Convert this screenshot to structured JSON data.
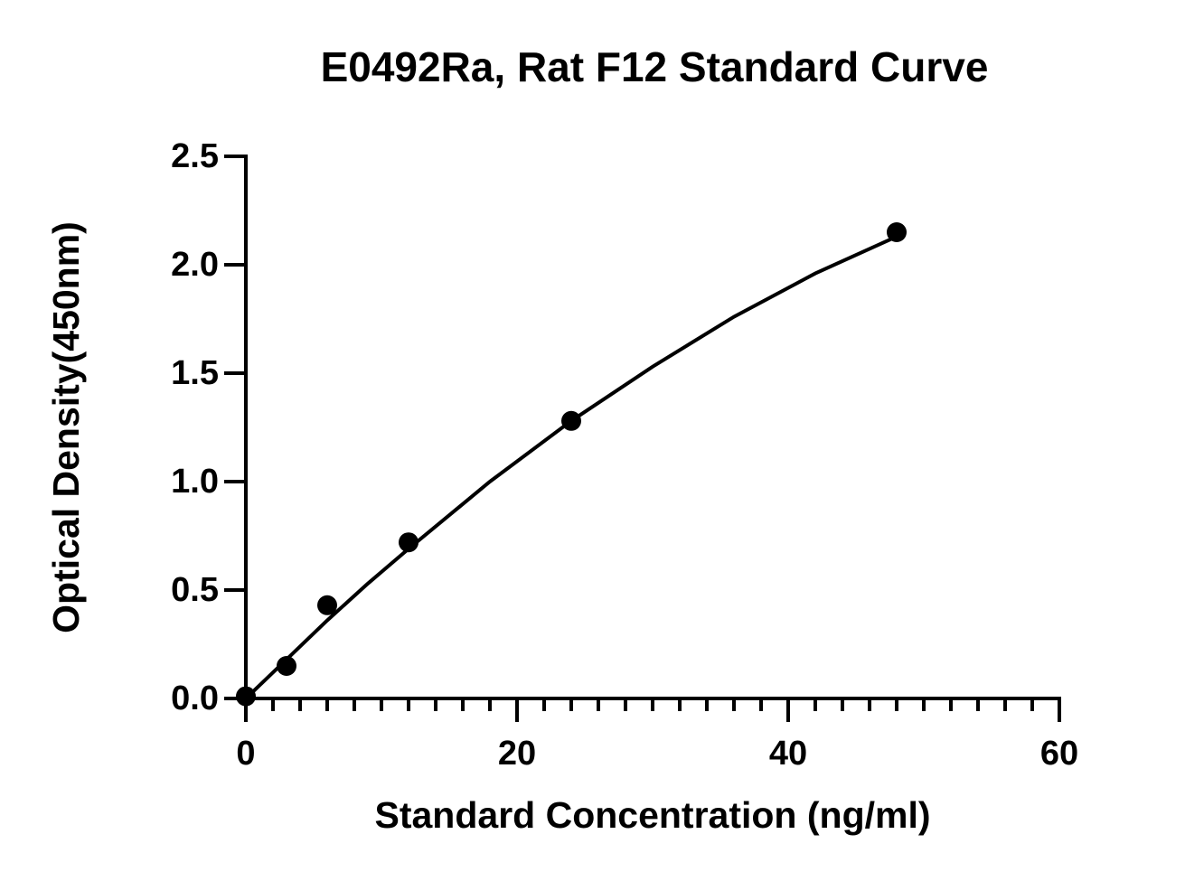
{
  "chart_data": {
    "type": "scatter",
    "title": "E0492Ra, Rat F12 Standard Curve",
    "x_label": "Standard Concentration (ng/ml)",
    "y_label": "Optical Density(450nm)",
    "x": [
      0,
      3,
      6,
      12,
      24,
      48
    ],
    "values": [
      0.01,
      0.15,
      0.43,
      0.72,
      1.28,
      2.15
    ],
    "color": "#000000",
    "fit": {
      "x": [
        0,
        3,
        6,
        9,
        12,
        18,
        24,
        30,
        36,
        42,
        48
      ],
      "values": [
        0,
        0.18,
        0.36,
        0.53,
        0.69,
        1.0,
        1.28,
        1.53,
        1.76,
        1.96,
        2.13
      ]
    },
    "xlim": [
      0,
      60
    ],
    "xticks": [
      0,
      20,
      40,
      60
    ],
    "xminorticks": [
      2,
      4,
      6,
      8,
      10,
      12,
      14,
      16,
      18,
      22,
      24,
      26,
      28,
      30,
      32,
      34,
      36,
      38,
      42,
      44,
      46,
      48,
      50,
      52,
      54,
      56,
      58
    ],
    "ylim": [
      0,
      2.5
    ],
    "yticks": [
      {
        "value": 0,
        "label": "0.0"
      },
      0.5,
      {
        "value": 1,
        "label": "1.0"
      },
      1.5,
      {
        "value": 2,
        "label": "2.0"
      },
      2.5
    ]
  }
}
